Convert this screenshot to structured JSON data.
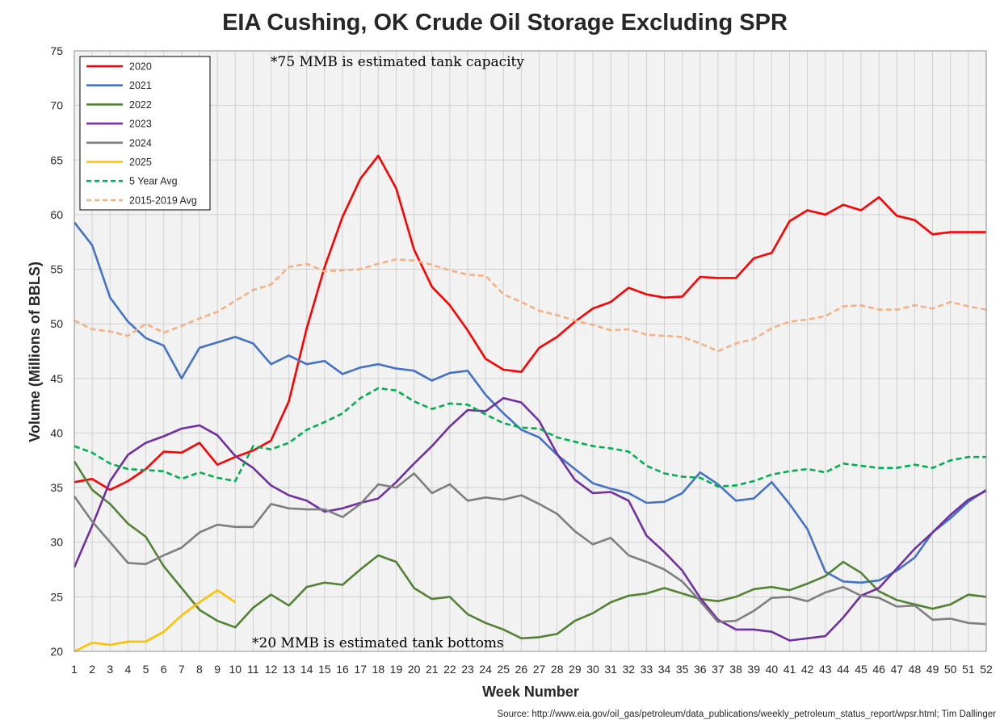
{
  "chart_data": {
    "type": "line",
    "title": "EIA Cushing, OK Crude Oil Storage Excluding SPR",
    "xlabel": "Week Number",
    "ylabel": "Volume (Millions of BBLS)",
    "ylim": [
      20,
      75
    ],
    "y_ticks": [
      "20",
      "25",
      "30",
      "35",
      "40",
      "45",
      "50",
      "55",
      "60",
      "65",
      "70",
      "75"
    ],
    "x_ticks": [
      "1",
      "2",
      "3",
      "4",
      "5",
      "6",
      "7",
      "8",
      "9",
      "10",
      "11",
      "12",
      "13",
      "14",
      "15",
      "16",
      "17",
      "18",
      "19",
      "20",
      "21",
      "22",
      "23",
      "24",
      "25",
      "26",
      "27",
      "28",
      "29",
      "30",
      "31",
      "32",
      "33",
      "34",
      "35",
      "36",
      "37",
      "38",
      "39",
      "40",
      "41",
      "42",
      "43",
      "44",
      "45",
      "46",
      "47",
      "48",
      "49",
      "50",
      "51",
      "52"
    ],
    "grid": true,
    "legend_position": "top-left",
    "annotations": {
      "capacity": "*75 MMB is estimated tank capacity",
      "bottoms": "*20 MMB is estimated tank bottoms"
    },
    "source": "Source: http://www.eia.gov/oil_gas/petroleum/data_publications/weekly_petroleum_status_report/wpsr.html; Tim Dallinger",
    "series": [
      {
        "name": "2020",
        "color": "#ff0000",
        "style": "solid",
        "values": [
          35.5,
          35.8,
          34.8,
          35.6,
          36.7,
          38.3,
          38.2,
          39.1,
          37.1,
          37.8,
          38.4,
          39.3,
          42.9,
          49.6,
          55.2,
          59.8,
          63.3,
          65.4,
          62.4,
          56.8,
          53.4,
          51.7,
          49.4,
          46.8,
          45.8,
          45.6,
          47.8,
          48.8,
          50.2,
          51.4,
          52.0,
          53.3,
          52.7,
          52.4,
          52.5,
          54.3,
          54.2,
          54.2,
          56.0,
          56.5,
          59.4,
          60.4,
          60.0,
          60.9,
          60.4,
          61.6,
          59.9,
          59.5,
          58.2,
          58.4,
          58.4,
          58.4
        ]
      },
      {
        "name": "2021",
        "color": "#4472c4",
        "style": "solid",
        "values": [
          59.3,
          57.2,
          52.4,
          50.2,
          48.7,
          48.0,
          45.0,
          47.8,
          48.3,
          48.8,
          48.2,
          46.3,
          47.1,
          46.3,
          46.6,
          45.4,
          46.0,
          46.3,
          45.9,
          45.7,
          44.8,
          45.5,
          45.7,
          43.5,
          41.8,
          40.3,
          39.6,
          38.0,
          36.7,
          35.4,
          34.9,
          34.5,
          33.6,
          33.7,
          34.5,
          36.4,
          35.3,
          33.8,
          34.0,
          35.5,
          33.5,
          31.2,
          27.3,
          26.4,
          26.3,
          26.5,
          27.4,
          28.6,
          30.9,
          32.2,
          33.7,
          34.8
        ]
      },
      {
        "name": "2022",
        "color": "#548235",
        "style": "solid",
        "values": [
          37.4,
          34.8,
          33.5,
          31.7,
          30.5,
          27.8,
          25.8,
          23.8,
          22.8,
          22.2,
          24.0,
          25.2,
          24.2,
          25.9,
          26.3,
          26.1,
          27.5,
          28.8,
          28.2,
          25.8,
          24.8,
          25.0,
          23.4,
          22.6,
          22.0,
          21.2,
          21.3,
          21.6,
          22.8,
          23.5,
          24.5,
          25.1,
          25.3,
          25.8,
          25.3,
          24.8,
          24.6,
          25.0,
          25.7,
          25.9,
          25.6,
          26.2,
          26.9,
          28.2,
          27.2,
          25.5,
          24.7,
          24.3,
          23.9,
          24.3,
          25.2,
          25.0
        ]
      },
      {
        "name": "2023",
        "color": "#7030a0",
        "style": "solid",
        "values": [
          27.7,
          31.5,
          35.6,
          38.0,
          39.1,
          39.7,
          40.4,
          40.7,
          39.8,
          37.9,
          36.8,
          35.2,
          34.3,
          33.8,
          32.8,
          33.1,
          33.6,
          34.0,
          35.5,
          37.2,
          38.8,
          40.6,
          42.1,
          42.0,
          43.2,
          42.8,
          41.1,
          38.1,
          35.7,
          34.5,
          34.6,
          33.8,
          30.6,
          29.1,
          27.4,
          24.9,
          22.9,
          22.0,
          22.0,
          21.8,
          21.0,
          21.2,
          21.4,
          23.1,
          25.1,
          25.8,
          27.6,
          29.4,
          30.9,
          32.5,
          33.9,
          34.7
        ]
      },
      {
        "name": "2024",
        "color": "#7f7f7f",
        "style": "solid",
        "values": [
          34.2,
          31.9,
          30.0,
          28.1,
          28.0,
          28.8,
          29.5,
          30.9,
          31.6,
          31.4,
          31.4,
          33.5,
          33.1,
          33.0,
          33.0,
          32.3,
          33.5,
          35.3,
          35.0,
          36.3,
          34.5,
          35.3,
          33.8,
          34.1,
          33.9,
          34.3,
          33.5,
          32.6,
          31.0,
          29.8,
          30.4,
          28.8,
          28.2,
          27.5,
          26.4,
          24.6,
          22.7,
          22.8,
          23.7,
          24.9,
          25.0,
          24.6,
          25.4,
          25.9,
          25.1,
          24.9,
          24.1,
          24.2,
          22.9,
          23.0,
          22.6,
          22.5
        ]
      },
      {
        "name": "2025",
        "color": "#ffc000",
        "style": "solid",
        "values": [
          20.0,
          20.8,
          20.6,
          20.9,
          20.9,
          21.8,
          23.3,
          24.5,
          25.6,
          24.5
        ]
      },
      {
        "name": "5 Year Avg",
        "color": "#00b050",
        "style": "dashed",
        "values": [
          38.8,
          38.2,
          37.2,
          36.7,
          36.6,
          36.5,
          35.8,
          36.4,
          35.9,
          35.6,
          38.8,
          38.5,
          39.1,
          40.3,
          41.0,
          41.8,
          43.2,
          44.1,
          43.9,
          42.9,
          42.2,
          42.7,
          42.6,
          41.7,
          40.9,
          40.5,
          40.4,
          39.6,
          39.2,
          38.8,
          38.6,
          38.3,
          37.0,
          36.3,
          36.0,
          35.9,
          35.1,
          35.2,
          35.6,
          36.2,
          36.5,
          36.7,
          36.4,
          37.2,
          37.0,
          36.8,
          36.8,
          37.1,
          36.8,
          37.5,
          37.8,
          37.8
        ]
      },
      {
        "name": "2015-2019 Avg",
        "color": "#f4b183",
        "style": "dashed",
        "values": [
          50.3,
          49.5,
          49.3,
          48.9,
          50.0,
          49.2,
          49.8,
          50.5,
          51.1,
          52.1,
          53.1,
          53.6,
          55.2,
          55.5,
          54.8,
          54.9,
          55.0,
          55.5,
          55.9,
          55.8,
          55.4,
          54.9,
          54.5,
          54.4,
          52.7,
          52.0,
          51.2,
          50.8,
          50.3,
          49.9,
          49.4,
          49.5,
          49.0,
          48.9,
          48.8,
          48.2,
          47.5,
          48.2,
          48.6,
          49.6,
          50.2,
          50.4,
          50.7,
          51.6,
          51.7,
          51.3,
          51.3,
          51.7,
          51.4,
          52.0,
          51.6,
          51.3
        ]
      }
    ]
  }
}
